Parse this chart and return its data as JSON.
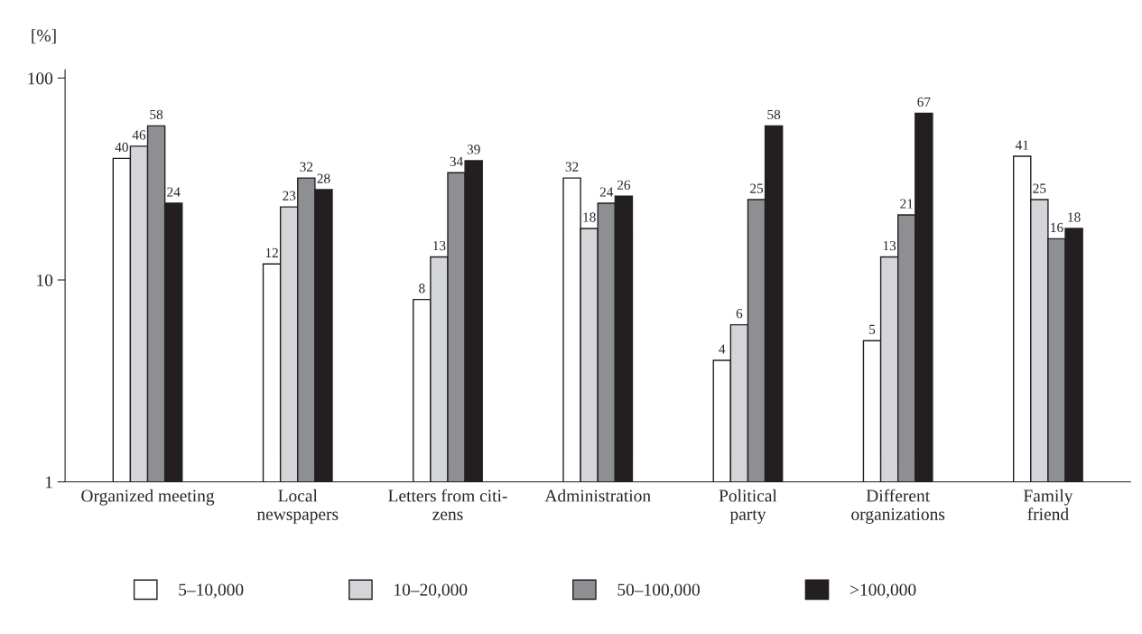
{
  "chart_data": {
    "type": "bar",
    "ylabel": "[%]",
    "categories": [
      "Organized meeting",
      "Local\nnewspapers",
      "Letters from citi-\nzens",
      "Administration",
      "Political\nparty",
      "Different\norganizations",
      "Family\nfriend"
    ],
    "series": [
      {
        "name": "5–10,000",
        "color": "#ffffff",
        "values": [
          40,
          12,
          8,
          32,
          4,
          5,
          41
        ]
      },
      {
        "name": "10–20,000",
        "color": "#d4d5d8",
        "values": [
          46,
          23,
          13,
          18,
          6,
          13,
          25
        ]
      },
      {
        "name": "50–100,000",
        "color": "#8e8f93",
        "values": [
          58,
          32,
          34,
          24,
          25,
          21,
          16
        ]
      },
      {
        "name": ">100,000",
        "color": "#231f20",
        "values": [
          24,
          28,
          39,
          26,
          58,
          67,
          18
        ]
      }
    ],
    "log": true,
    "ylim": [
      1,
      110
    ],
    "yticks": [
      1,
      10,
      100
    ],
    "grid": false,
    "legend": "bottom",
    "data_labels": true
  }
}
